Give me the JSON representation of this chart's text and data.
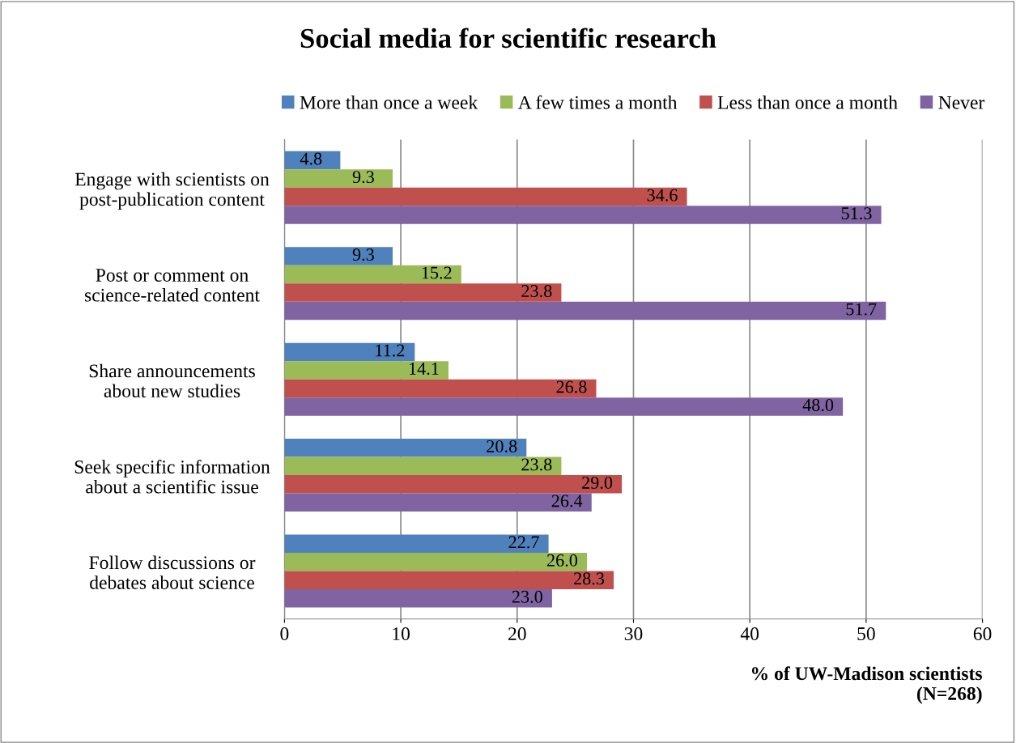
{
  "chart_data": {
    "type": "bar",
    "orientation": "horizontal",
    "title": "Social media for scientific research",
    "xlabel": "% of UW-Madison scientists\n(N=268)",
    "categories": [
      "Engage with scientists on\npost-publication content",
      "Post or comment on\nscience-related content",
      "Share announcements\nabout new studies",
      "Seek specific information\nabout a scientific issue",
      "Follow discussions or\ndebates about science"
    ],
    "series": [
      {
        "name": "More than once a week",
        "color": "#4f81bd",
        "values": [
          4.8,
          9.3,
          11.2,
          20.8,
          22.7
        ],
        "value_labels": [
          "4.8",
          "9.3",
          "11.2",
          "20.8",
          "22.7"
        ]
      },
      {
        "name": "A few times a month",
        "color": "#9bbb59",
        "values": [
          9.3,
          15.2,
          14.1,
          23.8,
          26.0
        ],
        "value_labels": [
          "9.3",
          "15.2",
          "14.1",
          "23.8",
          "26.0"
        ]
      },
      {
        "name": "Less than once a month",
        "color": "#c0504d",
        "values": [
          34.6,
          23.8,
          26.8,
          29.0,
          28.3
        ],
        "value_labels": [
          "34.6",
          "23.8",
          "26.8",
          "29.0",
          "28.3"
        ]
      },
      {
        "name": "Never",
        "color": "#8064a2",
        "values": [
          51.3,
          51.7,
          48.0,
          26.4,
          23.0
        ],
        "value_labels": [
          "51.3",
          "51.7",
          "48.0",
          "26.4",
          "23.0"
        ]
      }
    ],
    "xlim": [
      0,
      60
    ],
    "xticks": [
      0,
      10,
      20,
      30,
      40,
      50,
      60
    ],
    "grid": "x",
    "legend": "top"
  }
}
